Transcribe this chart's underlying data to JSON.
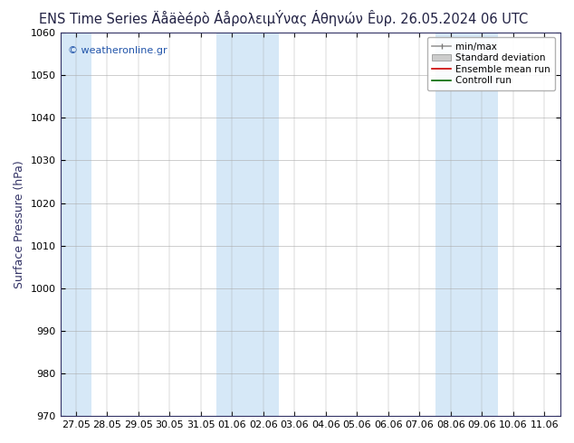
{
  "title_left": "ENS Time Series Äåäèéρò ÁåρολειμÝνας Áθηνών",
  "title_right": "Êυρ. 26.05.2024 06 UTC",
  "ylabel": "Surface Pressure (hPa)",
  "ylim": [
    970,
    1060
  ],
  "yticks": [
    970,
    980,
    990,
    1000,
    1010,
    1020,
    1030,
    1040,
    1050,
    1060
  ],
  "x_labels": [
    "27.05",
    "28.05",
    "29.05",
    "30.05",
    "31.05",
    "01.06",
    "02.06",
    "03.06",
    "04.06",
    "05.06",
    "06.06",
    "07.06",
    "08.06",
    "09.06",
    "10.06",
    "11.06"
  ],
  "watermark": "© weatheronline.gr",
  "figure_bg": "#ffffff",
  "plot_bg": "#ffffff",
  "light_blue": "#d6e8f7",
  "band_positions": [
    0,
    5,
    6,
    12,
    13
  ],
  "title_fontsize": 10.5,
  "tick_fontsize": 8,
  "ylabel_fontsize": 9
}
